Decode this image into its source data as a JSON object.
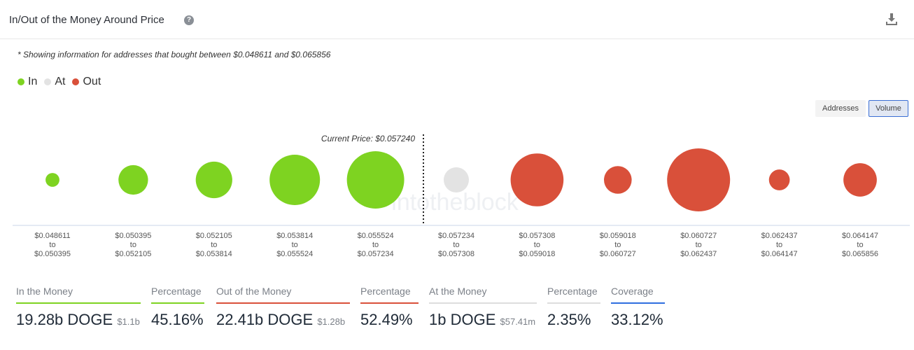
{
  "header": {
    "title": "In/Out of the Money Around Price",
    "help_icon": "question-circle-icon",
    "download_icon": "download-icon"
  },
  "note": "* Showing information for addresses that bought between $0.048611 and $0.065856",
  "legend": [
    {
      "label": "In",
      "color": "#7ed321"
    },
    {
      "label": "At",
      "color": "#e3e3e3"
    },
    {
      "label": "Out",
      "color": "#d9503a"
    }
  ],
  "toggles": {
    "addresses": "Addresses",
    "volume": "Volume",
    "active": "Volume"
  },
  "watermark": "intotheblock",
  "chart_data": {
    "type": "bubble",
    "current_price_label": "Current Price: $0.057240",
    "current_price": 0.05724,
    "categories": [
      {
        "from": "$0.048611",
        "to": "$0.050395",
        "status": "In",
        "relative_size": 0.22
      },
      {
        "from": "$0.050395",
        "to": "$0.052105",
        "status": "In",
        "relative_size": 0.47
      },
      {
        "from": "$0.052105",
        "to": "$0.053814",
        "status": "In",
        "relative_size": 0.58
      },
      {
        "from": "$0.053814",
        "to": "$0.055524",
        "status": "In",
        "relative_size": 0.8
      },
      {
        "from": "$0.055524",
        "to": "$0.057234",
        "status": "In",
        "relative_size": 0.91
      },
      {
        "from": "$0.057234",
        "to": "$0.057308",
        "status": "At",
        "relative_size": 0.4
      },
      {
        "from": "$0.057308",
        "to": "$0.059018",
        "status": "Out",
        "relative_size": 0.84
      },
      {
        "from": "$0.059018",
        "to": "$0.060727",
        "status": "Out",
        "relative_size": 0.44
      },
      {
        "from": "$0.060727",
        "to": "$0.062437",
        "status": "Out",
        "relative_size": 1.0
      },
      {
        "from": "$0.062437",
        "to": "$0.064147",
        "status": "Out",
        "relative_size": 0.33
      },
      {
        "from": "$0.064147",
        "to": "$0.065856",
        "status": "Out",
        "relative_size": 0.53
      }
    ],
    "to_word": "to"
  },
  "stats": {
    "in": {
      "label": "In the Money",
      "value": "19.28b DOGE",
      "usd": "$1.1b",
      "color": "#7ed321"
    },
    "in_pct": {
      "label": "Percentage",
      "value": "45.16%",
      "color": "#7ed321"
    },
    "out": {
      "label": "Out of the Money",
      "value": "22.41b DOGE",
      "usd": "$1.28b",
      "color": "#d9503a"
    },
    "out_pct": {
      "label": "Percentage",
      "value": "52.49%",
      "color": "#d9503a"
    },
    "at": {
      "label": "At the Money",
      "value": "1b DOGE",
      "usd": "$57.41m",
      "color": "#dddddd"
    },
    "at_pct": {
      "label": "Percentage",
      "value": "2.35%",
      "color": "#dddddd"
    },
    "coverage": {
      "label": "Coverage",
      "value": "33.12%",
      "color": "#2f6fdf"
    }
  }
}
